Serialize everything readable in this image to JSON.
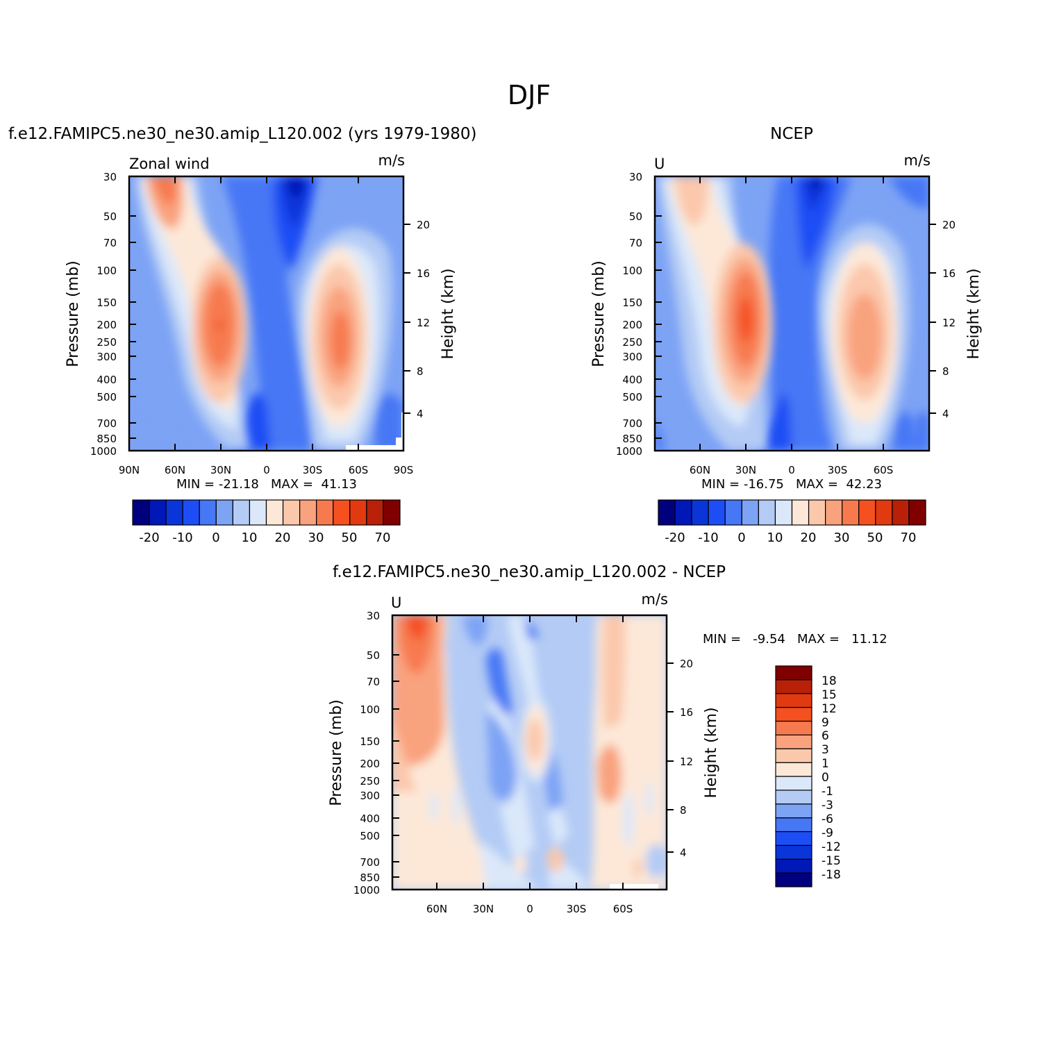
{
  "page_title": "DJF",
  "panels": [
    {
      "title": "f.e12.FAMIPC5.ne30_ne30.amip_L120.002 (yrs 1979-1980)",
      "left_label": "Zonal wind",
      "right_label": "m/s",
      "ylabel": "Pressure (mb)",
      "ylabel2": "Height (km)",
      "stats": "MIN = -21.18   MAX =  41.13"
    },
    {
      "title": "NCEP",
      "left_label": "U",
      "right_label": "m/s",
      "ylabel": "Pressure (mb)",
      "ylabel2": "Height (km)",
      "stats": "MIN = -16.75   MAX =  42.23"
    },
    {
      "title": "f.e12.FAMIPC5.ne30_ne30.amip_L120.002 - NCEP",
      "left_label": "U",
      "right_label": "m/s",
      "ylabel": "Pressure (mb)",
      "ylabel2": "Height (km)",
      "stats": "MIN =   -9.54   MAX =   11.12"
    }
  ],
  "colors": {
    "abs_scale": [
      "#00007f",
      "#0018b8",
      "#0a35d9",
      "#1d4ef5",
      "#4677f5",
      "#7da3f5",
      "#b3cbf5",
      "#dbe8fa",
      "#fde8d8",
      "#fbc8ac",
      "#f9a27e",
      "#f77a4f",
      "#f55020",
      "#e23a10",
      "#b82008",
      "#800000"
    ],
    "diff_scale": [
      "#00007f",
      "#0018b8",
      "#0a35d9",
      "#1d4ef5",
      "#4677f5",
      "#7da3f5",
      "#b3cbf5",
      "#dbe8fa",
      "#fde8d8",
      "#fbc8ac",
      "#f9a27e",
      "#f77a4f",
      "#f55020",
      "#e23a10",
      "#b82008",
      "#800000"
    ]
  },
  "chart_data": [
    {
      "type": "heatmap",
      "title": "f.e12.FAMIPC5.ne30_ne30.amip_L120.002 (yrs 1979-1980)",
      "variable": "Zonal wind",
      "units": "m/s",
      "xlabel": "",
      "ylabel": "Pressure (mb)",
      "ylabel_right": "Height (km)",
      "x_ticks": [
        "90N",
        "60N",
        "30N",
        "0",
        "30S",
        "60S",
        "90S"
      ],
      "y_ticks": [
        "30",
        "50",
        "70",
        "100",
        "150",
        "200",
        "250",
        "300",
        "400",
        "500",
        "700",
        "850",
        "1000"
      ],
      "y2_ticks": [
        "20",
        "16",
        "12",
        "8",
        "4"
      ],
      "xlim": [
        90,
        -90
      ],
      "ylim": [
        1000,
        30
      ],
      "y_scale": "log",
      "min": -21.18,
      "max": 41.13,
      "features": [
        {
          "lat": 62,
          "p": 35,
          "value": 41
        },
        {
          "lat": 30,
          "p": 200,
          "value": 41
        },
        {
          "lat": -48,
          "p": 220,
          "value": 38
        },
        {
          "lat": 18,
          "p": 30,
          "value": -21
        }
      ],
      "colorbar": {
        "levels": [
          "-20",
          "-10",
          "0",
          "10",
          "20",
          "30",
          "50",
          "70"
        ],
        "n_colors": 16
      }
    },
    {
      "type": "heatmap",
      "title": "NCEP",
      "variable": "U",
      "units": "m/s",
      "xlabel": "",
      "ylabel": "Pressure (mb)",
      "ylabel_right": "Height (km)",
      "x_ticks": [
        "60N",
        "30N",
        "0",
        "30S",
        "60S"
      ],
      "y_ticks": [
        "30",
        "50",
        "70",
        "100",
        "150",
        "200",
        "250",
        "300",
        "400",
        "500",
        "700",
        "850",
        "1000"
      ],
      "y2_ticks": [
        "20",
        "16",
        "12",
        "8",
        "4"
      ],
      "xlim": [
        90,
        -90
      ],
      "ylim": [
        1000,
        30
      ],
      "y_scale": "log",
      "min": -16.75,
      "max": 42.23,
      "features": [
        {
          "lat": 30,
          "p": 200,
          "value": 42
        },
        {
          "lat": -47,
          "p": 230,
          "value": 32
        },
        {
          "lat": 15,
          "p": 30,
          "value": -16
        }
      ],
      "colorbar": {
        "levels": [
          "-20",
          "-10",
          "0",
          "10",
          "20",
          "30",
          "50",
          "70"
        ],
        "n_colors": 16
      }
    },
    {
      "type": "heatmap",
      "title": "f.e12.FAMIPC5.ne30_ne30.amip_L120.002 - NCEP",
      "variable": "U",
      "units": "m/s",
      "xlabel": "",
      "ylabel": "Pressure (mb)",
      "ylabel_right": "Height (km)",
      "x_ticks": [
        "60N",
        "30N",
        "0",
        "30S",
        "60S"
      ],
      "y_ticks": [
        "30",
        "50",
        "70",
        "100",
        "150",
        "200",
        "250",
        "300",
        "400",
        "500",
        "700",
        "850",
        "1000"
      ],
      "y2_ticks": [
        "20",
        "16",
        "12",
        "8",
        "4"
      ],
      "xlim": [
        90,
        -90
      ],
      "ylim": [
        1000,
        30
      ],
      "y_scale": "log",
      "min": -9.54,
      "max": 11.12,
      "features": [
        {
          "lat": 73,
          "p": 35,
          "value": 11
        },
        {
          "lat": -50,
          "p": 180,
          "value": 5
        },
        {
          "lat": 0,
          "p": 140,
          "value": 4
        },
        {
          "lat": 22,
          "p": 70,
          "value": -9
        }
      ],
      "colorbar": {
        "levels": [
          "18",
          "15",
          "12",
          "9",
          "6",
          "3",
          "1",
          "0",
          "-1",
          "-3",
          "-6",
          "-9",
          "-12",
          "-15",
          "-18"
        ],
        "n_colors": 16
      }
    }
  ]
}
